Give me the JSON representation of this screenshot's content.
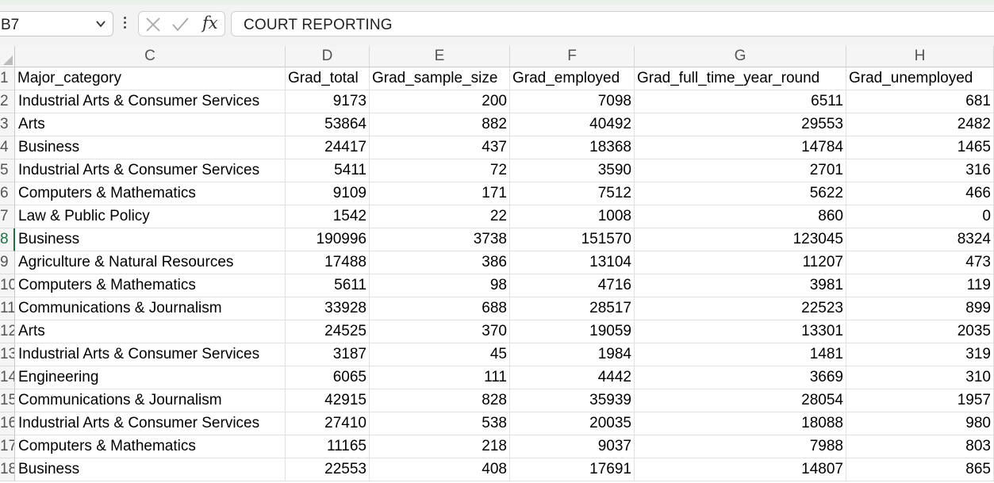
{
  "formula_bar": {
    "name_box": "B7",
    "fx_label": "fx",
    "formula": "COURT REPORTING"
  },
  "columns": [
    "C",
    "D",
    "E",
    "F",
    "G",
    "H"
  ],
  "row_numbers": [
    "1",
    "2",
    "3",
    "4",
    "5",
    "6",
    "7",
    "8",
    "9",
    "10",
    "11",
    "12",
    "13",
    "14",
    "15",
    "16",
    "17",
    "18"
  ],
  "header_row": [
    "Major_category",
    "Grad_total",
    "Grad_sample_size",
    "Grad_employed",
    "Grad_full_time_year_round",
    "Grad_unemployed"
  ],
  "rows": [
    [
      "Industrial Arts & Consumer Services",
      "9173",
      "200",
      "7098",
      "6511",
      "681"
    ],
    [
      "Arts",
      "53864",
      "882",
      "40492",
      "29553",
      "2482"
    ],
    [
      "Business",
      "24417",
      "437",
      "18368",
      "14784",
      "1465"
    ],
    [
      "Industrial Arts & Consumer Services",
      "5411",
      "72",
      "3590",
      "2701",
      "316"
    ],
    [
      "Computers & Mathematics",
      "9109",
      "171",
      "7512",
      "5622",
      "466"
    ],
    [
      "Law & Public Policy",
      "1542",
      "22",
      "1008",
      "860",
      "0"
    ],
    [
      "Business",
      "190996",
      "3738",
      "151570",
      "123045",
      "8324"
    ],
    [
      "Agriculture & Natural Resources",
      "17488",
      "386",
      "13104",
      "11207",
      "473"
    ],
    [
      "Computers & Mathematics",
      "5611",
      "98",
      "4716",
      "3981",
      "119"
    ],
    [
      "Communications & Journalism",
      "33928",
      "688",
      "28517",
      "22523",
      "899"
    ],
    [
      "Arts",
      "24525",
      "370",
      "19059",
      "13301",
      "2035"
    ],
    [
      "Industrial Arts & Consumer Services",
      "3187",
      "45",
      "1984",
      "1481",
      "319"
    ],
    [
      "Engineering",
      "6065",
      "111",
      "4442",
      "3669",
      "310"
    ],
    [
      "Communications & Journalism",
      "42915",
      "828",
      "35939",
      "28054",
      "1957"
    ],
    [
      "Industrial Arts & Consumer Services",
      "27410",
      "538",
      "20035",
      "18088",
      "980"
    ],
    [
      "Computers & Mathematics",
      "11165",
      "218",
      "9037",
      "7988",
      "803"
    ],
    [
      "Business",
      "22553",
      "408",
      "17691",
      "14807",
      "865"
    ]
  ],
  "selected_row_index": 6,
  "colors": {
    "selection_accent": "#1e7145",
    "header_bg": "#f5f5f5",
    "gridline": "#e1e1e1"
  }
}
